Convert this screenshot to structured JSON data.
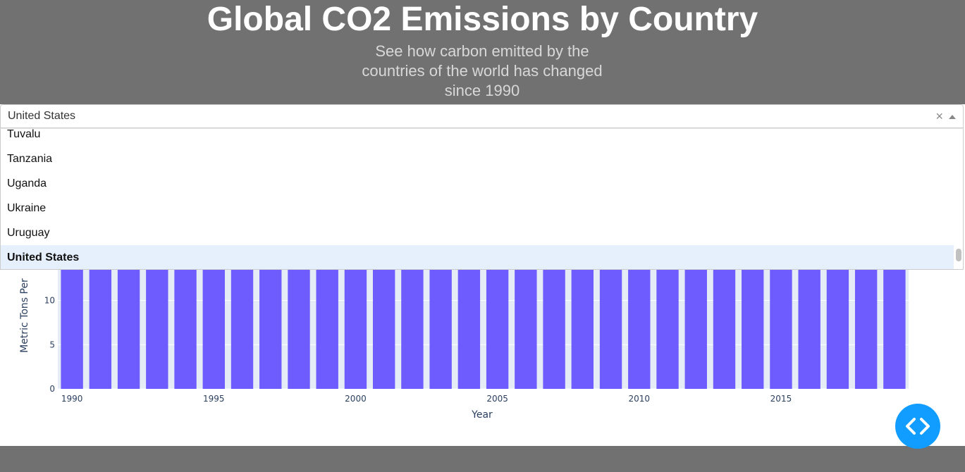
{
  "header": {
    "title": "Global CO2 Emissions by Country",
    "subtitle_lines": [
      "See how carbon emitted by the",
      "countries of the world has changed",
      "since 1990"
    ]
  },
  "dropdown": {
    "value": "United States",
    "clear_symbol": "×",
    "options": [
      "Tuvalu",
      "Tanzania",
      "Uganda",
      "Ukraine",
      "Uruguay",
      "United States"
    ],
    "selected": "United States"
  },
  "chart_data": {
    "type": "bar",
    "x": [
      1990,
      1991,
      1992,
      1993,
      1994,
      1995,
      1996,
      1997,
      1998,
      1999,
      2000,
      2001,
      2002,
      2003,
      2004,
      2005,
      2006,
      2007,
      2008,
      2009,
      2010,
      2011,
      2012,
      2013,
      2014,
      2015,
      2016,
      2017,
      2018,
      2019
    ],
    "xlabel": "Year",
    "ylabel": "Metric Tons Per",
    "x_ticks": [
      "1990",
      "1995",
      "2000",
      "2005",
      "2010",
      "2015"
    ],
    "y_ticks": [
      "0",
      "5",
      "10"
    ],
    "ylim": [
      0,
      20
    ],
    "bar_color": "#6e5cff",
    "note": "Bar tops hidden behind open dropdown; all bars extend beyond visible area"
  },
  "fab_icon": "code-brackets-icon"
}
